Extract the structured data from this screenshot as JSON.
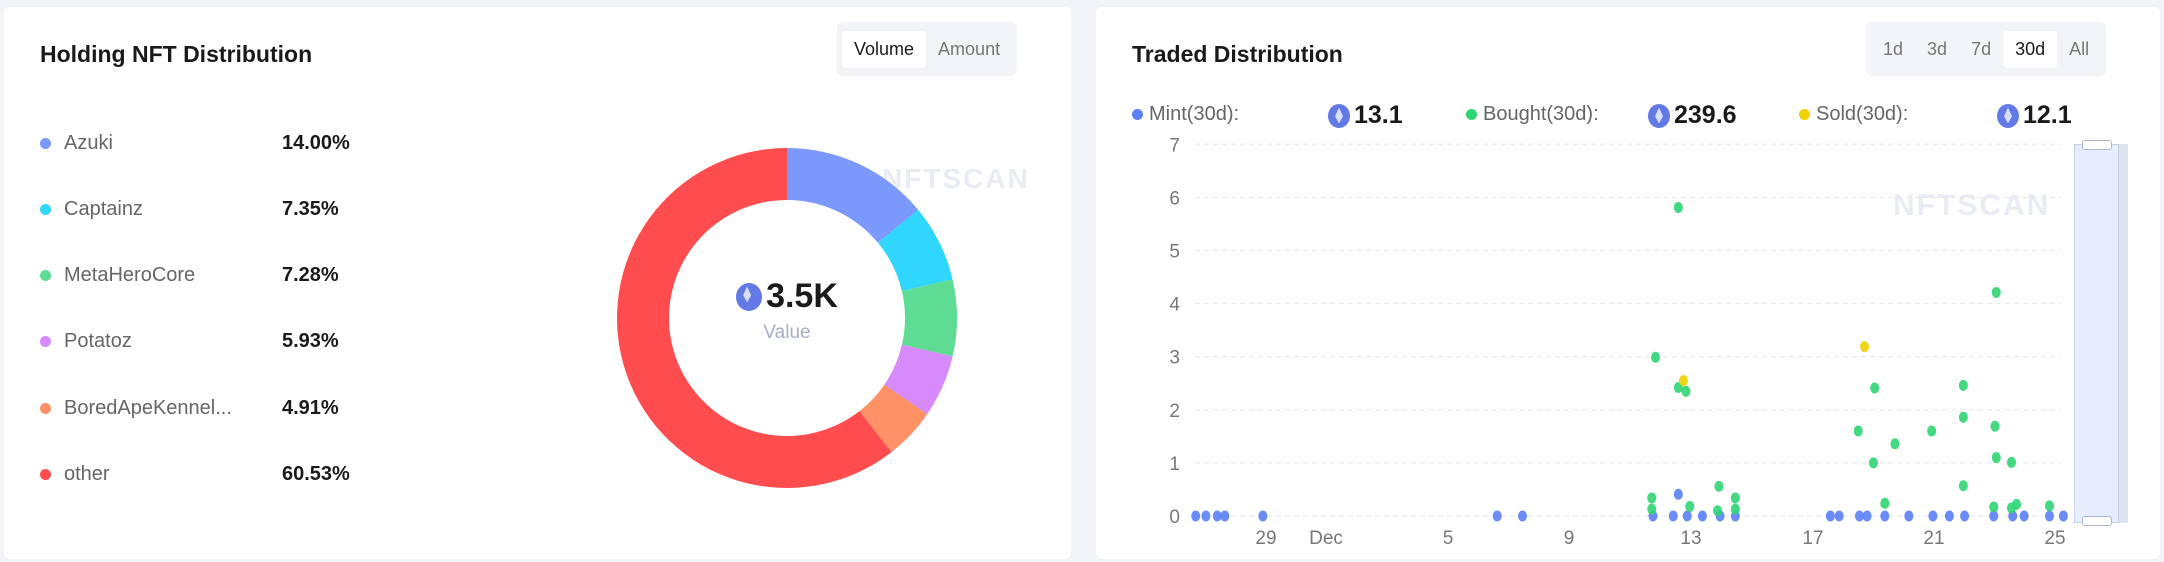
{
  "holding": {
    "title": "Holding NFT Distribution",
    "toggle": [
      "Volume",
      "Amount"
    ],
    "active": "Volume",
    "center_value": "3.5K",
    "center_label": "Value",
    "watermark": "NFTSCAN",
    "items": [
      {
        "label": "Azuki",
        "value": "14.00%",
        "pct": 14.0,
        "color": "#7b98fc"
      },
      {
        "label": "Captainz",
        "value": "7.35%",
        "pct": 7.35,
        "color": "#30d6fd"
      },
      {
        "label": "MetaHeroCore",
        "value": "7.28%",
        "pct": 7.28,
        "color": "#5fdc94"
      },
      {
        "label": "Potatoz",
        "value": "5.93%",
        "pct": 5.93,
        "color": "#d68afb"
      },
      {
        "label": "BoredApeKennel...",
        "value": "4.91%",
        "pct": 4.91,
        "color": "#ff9166"
      },
      {
        "label": "other",
        "value": "60.53%",
        "pct": 60.53,
        "color": "#ff4d4f"
      }
    ]
  },
  "traded": {
    "title": "Traded Distribution",
    "ranges": [
      "1d",
      "3d",
      "7d",
      "30d",
      "All"
    ],
    "active": "30d",
    "watermark": "NFTSCAN",
    "summary": [
      {
        "label": "Mint(30d):",
        "value": "13.1",
        "color": "#5b7ff5"
      },
      {
        "label": "Bought(30d):",
        "value": "239.6",
        "color": "#2ed573"
      },
      {
        "label": "Sold(30d):",
        "value": "12.1",
        "color": "#f0d000"
      }
    ]
  },
  "chart_data": {
    "type": "scatter",
    "ylim": [
      0,
      7
    ],
    "yticks": [
      "0",
      "1",
      "2",
      "3",
      "4",
      "5",
      "6",
      "7"
    ],
    "xticks": [
      "29",
      "Dec",
      "5",
      "9",
      "13",
      "17",
      "21",
      "25"
    ],
    "grid": "horizontal dashed",
    "series": [
      {
        "name": "Mint(30d)",
        "color": "#5b7ff5",
        "points": [
          [
            "11-26 17:00",
            0
          ],
          [
            "11-27 01:00",
            0
          ],
          [
            "11-27 10:00",
            0
          ],
          [
            "11-27 16:00",
            0
          ],
          [
            "11-28 22:00",
            0
          ],
          [
            "12-06 15:00",
            0
          ],
          [
            "12-07 11:00",
            0
          ],
          [
            "12-11 18:00",
            0
          ],
          [
            "12-12 10:00",
            0
          ],
          [
            "12-12 14:00",
            0.41
          ],
          [
            "12-12 21:00",
            0
          ],
          [
            "12-13 09:00",
            0
          ],
          [
            "12-13 23:00",
            0
          ],
          [
            "12-14 11:00",
            0
          ],
          [
            "12-17 14:00",
            0
          ],
          [
            "12-17 21:00",
            0
          ],
          [
            "12-18 13:00",
            0
          ],
          [
            "12-18 19:00",
            0
          ],
          [
            "12-19 09:00",
            0
          ],
          [
            "12-20 04:00",
            0
          ],
          [
            "12-20 23:00",
            0
          ],
          [
            "12-21 12:00",
            0
          ],
          [
            "12-22 00:00",
            0
          ],
          [
            "12-22 23:00",
            0
          ],
          [
            "12-23 14:00",
            0
          ],
          [
            "12-23 23:00",
            0
          ],
          [
            "12-24 19:00",
            0
          ],
          [
            "12-25 06:00",
            0
          ]
        ]
      },
      {
        "name": "Bought(30d)",
        "color": "#2ed573",
        "points": [
          [
            "12-12 14:00",
            5.81
          ],
          [
            "12-11 20:00",
            2.99
          ],
          [
            "12-12 14:00",
            2.42
          ],
          [
            "12-12 20:00",
            2.35
          ],
          [
            "12-13 22:00",
            0.56
          ],
          [
            "12-14 11:00",
            0.34
          ],
          [
            "12-14 11:00",
            0.13
          ],
          [
            "12-11 17:00",
            0.34
          ],
          [
            "12-11 17:00",
            0.13
          ],
          [
            "12-12 23:00",
            0.18
          ],
          [
            "12-13 21:00",
            0.1
          ],
          [
            "12-23 01:00",
            4.21
          ],
          [
            "12-19 01:00",
            2.41
          ],
          [
            "12-21 23:00",
            2.46
          ],
          [
            "12-21 23:00",
            1.86
          ],
          [
            "12-18 12:00",
            1.6
          ],
          [
            "12-20 22:00",
            1.6
          ],
          [
            "12-23 00:00",
            1.69
          ],
          [
            "12-19 17:00",
            1.36
          ],
          [
            "12-23 01:00",
            1.1
          ],
          [
            "12-19 00:00",
            1.0
          ],
          [
            "12-23 13:00",
            1.01
          ],
          [
            "12-21 23:00",
            0.57
          ],
          [
            "12-19 09:00",
            0.24
          ],
          [
            "12-22 23:00",
            0.17
          ],
          [
            "12-23 17:00",
            0.22
          ],
          [
            "12-24 19:00",
            0.19
          ],
          [
            "12-23 13:00",
            0.15
          ]
        ]
      },
      {
        "name": "Sold(30d)",
        "color": "#f0d000",
        "points": [
          [
            "12-12 18:00",
            2.55
          ],
          [
            "12-18 17:00",
            3.19
          ]
        ]
      }
    ]
  }
}
